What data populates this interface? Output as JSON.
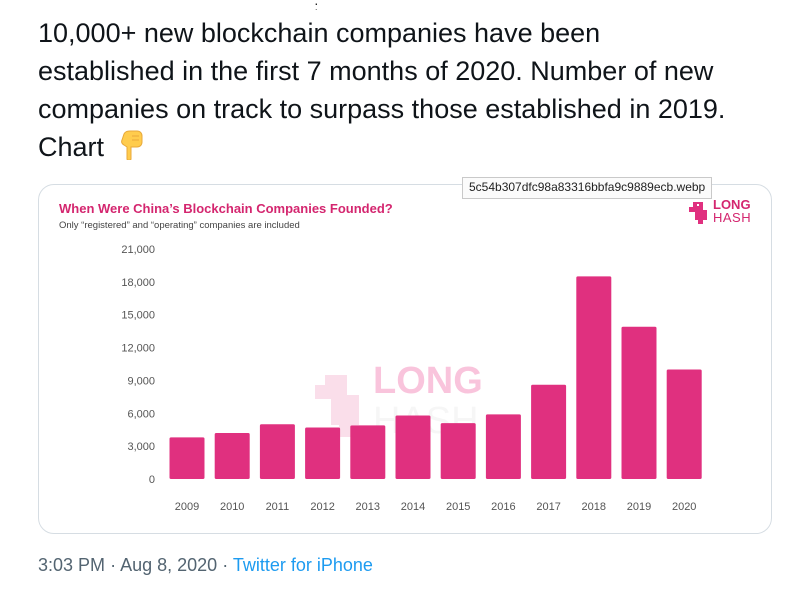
{
  "tweet": {
    "text_line1": "10,000+ new blockchain companies have been",
    "text_line2": "established in the first 7 months of 2020. Number of new",
    "text_line3": "companies on track to surpass those established in 2019.",
    "text_line4": "Chart"
  },
  "media": {
    "filename_tooltip": "5c54b307dfc98a83316bbfa9c9889ecb.webp"
  },
  "chart_data": {
    "type": "bar",
    "title": "When Were China’s Blockchain Companies Founded?",
    "subtitle": "Only “registered” and “operating” companies are included",
    "categories": [
      "2009",
      "2010",
      "2011",
      "2012",
      "2013",
      "2014",
      "2015",
      "2016",
      "2017",
      "2018",
      "2019",
      "2020"
    ],
    "values": [
      3800,
      4200,
      5000,
      4700,
      4900,
      5800,
      5100,
      5900,
      8600,
      18500,
      13900,
      10000
    ],
    "ylim": [
      0,
      21000
    ],
    "yticks": [
      "0",
      "3,000",
      "6,000",
      "9,000",
      "12,000",
      "15,000",
      "18,000",
      "21,000"
    ],
    "grid": false,
    "bar_color": "#e0307f",
    "brand_line1": "LONG",
    "brand_line2": "HASH",
    "watermark_line1": "LONG",
    "watermark_line2": "HASH"
  },
  "footer": {
    "time": "3:03 PM",
    "separator1": "·",
    "date": "Aug 8, 2020",
    "separator2": "·",
    "source": "Twitter for iPhone"
  },
  "colors": {
    "text": "#0f1419",
    "meta": "#536471",
    "link": "#1d9bf0",
    "accent": "#d4266f"
  }
}
